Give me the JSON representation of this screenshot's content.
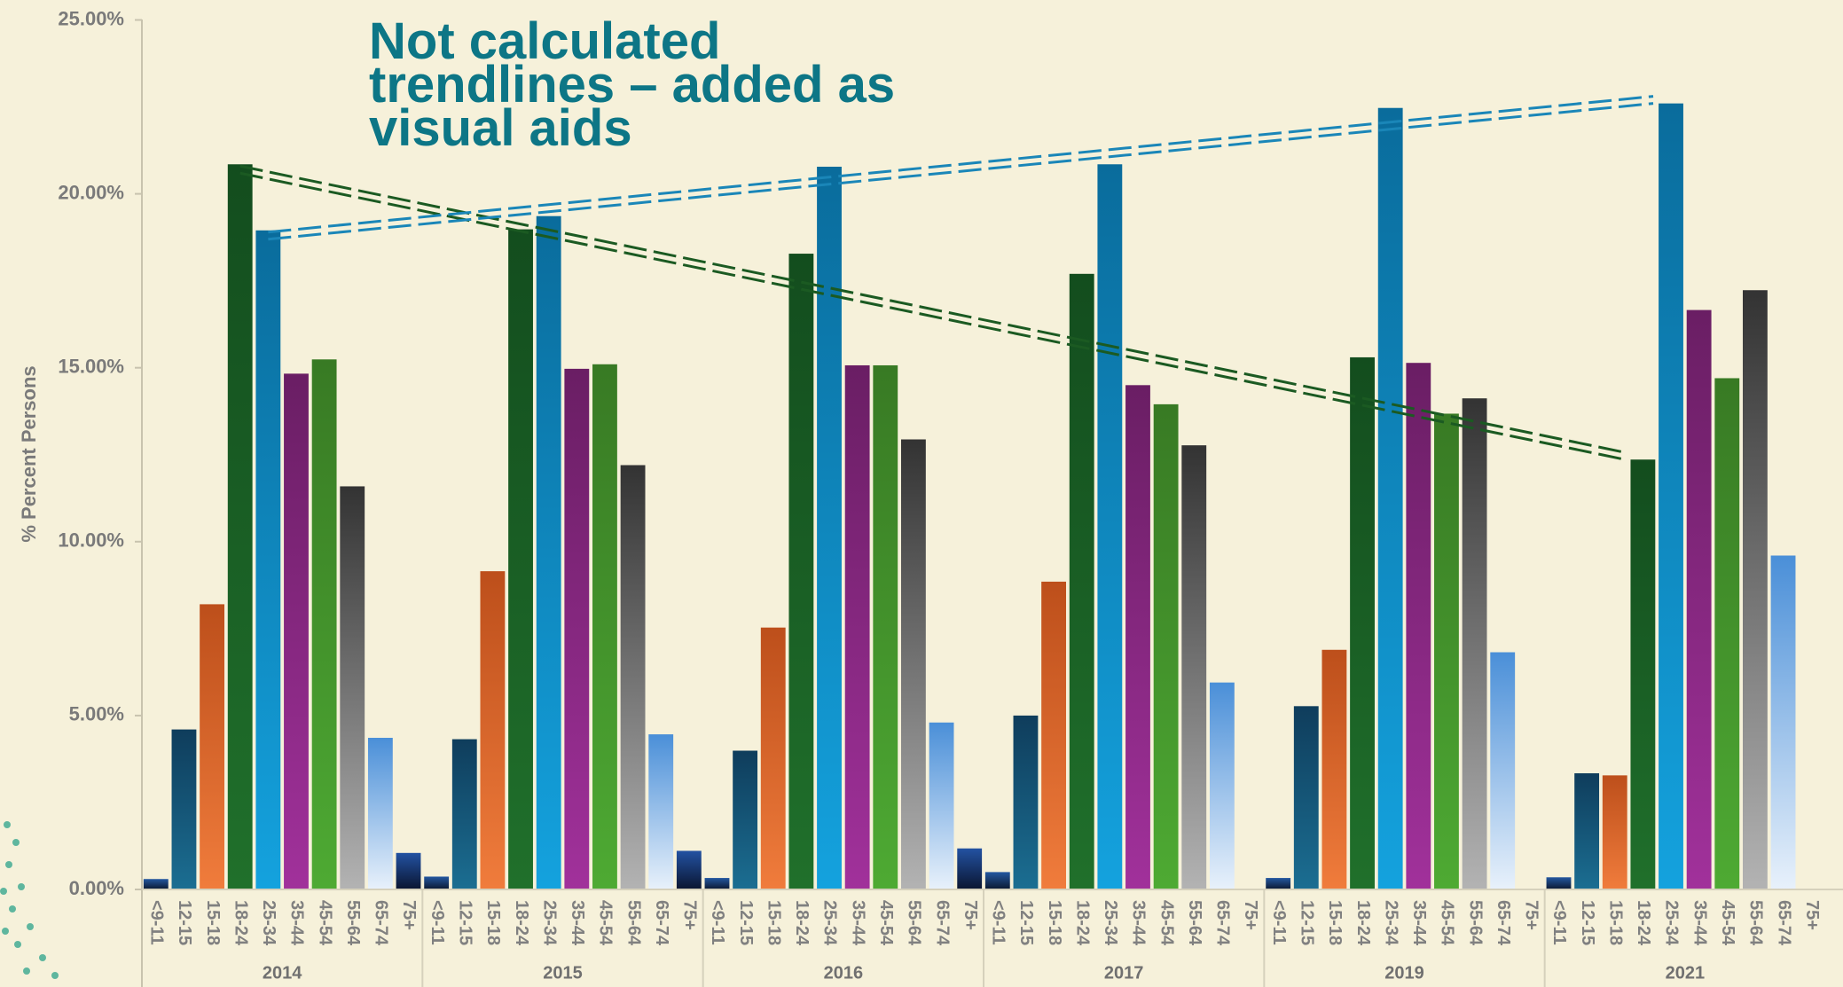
{
  "chart_data": {
    "type": "bar",
    "annotation": [
      "Not calculated",
      "trendlines – added as",
      "visual aids"
    ],
    "y_label": "% Percent Persons",
    "categories": [
      "2014",
      "2015",
      "2016",
      "2017",
      "2019",
      "2021"
    ],
    "series": [
      {
        "name": "<9-11",
        "color": "#2458a0",
        "gradient_to": "#0b1830",
        "values": [
          0.3,
          0.37,
          0.33,
          0.5,
          0.33,
          0.35
        ]
      },
      {
        "name": "12-15",
        "color": "#0f3d5c",
        "gradient_to": "#1b6e92",
        "values": [
          4.6,
          4.32,
          3.99,
          5.0,
          5.27,
          3.34
        ]
      },
      {
        "name": "15-18",
        "color": "#bd4f1b",
        "gradient_to": "#f07c3c",
        "values": [
          8.2,
          9.15,
          7.53,
          8.85,
          6.89,
          3.28
        ]
      },
      {
        "name": "18-24",
        "color": "#134d1e",
        "gradient_to": "#20702b",
        "values": [
          20.85,
          18.98,
          18.28,
          17.7,
          15.3,
          12.36
        ]
      },
      {
        "name": "25-34",
        "color": "#0a6c9c",
        "gradient_to": "#14a2de",
        "values": [
          18.95,
          19.36,
          20.78,
          20.85,
          22.47,
          22.6
        ]
      },
      {
        "name": "35-44",
        "color": "#6a1e64",
        "gradient_to": "#a1319b",
        "values": [
          14.83,
          14.97,
          15.07,
          14.5,
          15.14,
          16.66
        ]
      },
      {
        "name": "45-54",
        "color": "#387a24",
        "gradient_to": "#4eaa33",
        "values": [
          15.24,
          15.1,
          15.07,
          13.95,
          13.68,
          14.7
        ]
      },
      {
        "name": "55-64",
        "color": "#333333",
        "gradient_to": "#b3b3b3",
        "values": [
          11.59,
          12.2,
          12.94,
          12.77,
          14.12,
          17.23
        ]
      },
      {
        "name": "65-74",
        "color": "#4a8fd8",
        "gradient_to": "#e8f1fb",
        "values": [
          4.36,
          4.46,
          4.8,
          5.95,
          6.82,
          9.6
        ]
      },
      {
        "name": "75+",
        "color": "#2352a2",
        "gradient_to": "#0a1530",
        "values": [
          1.05,
          1.11,
          1.18,
          null,
          null,
          null
        ]
      }
    ],
    "ylim": [
      0,
      25
    ],
    "yticks": [
      {
        "value": 0,
        "label": "0.00%"
      },
      {
        "value": 5,
        "label": "5.00%"
      },
      {
        "value": 10,
        "label": "10.00%"
      },
      {
        "value": 15,
        "label": "15.00%"
      },
      {
        "value": 20,
        "label": "20.00%"
      },
      {
        "value": 25,
        "label": "25.00%"
      }
    ]
  }
}
